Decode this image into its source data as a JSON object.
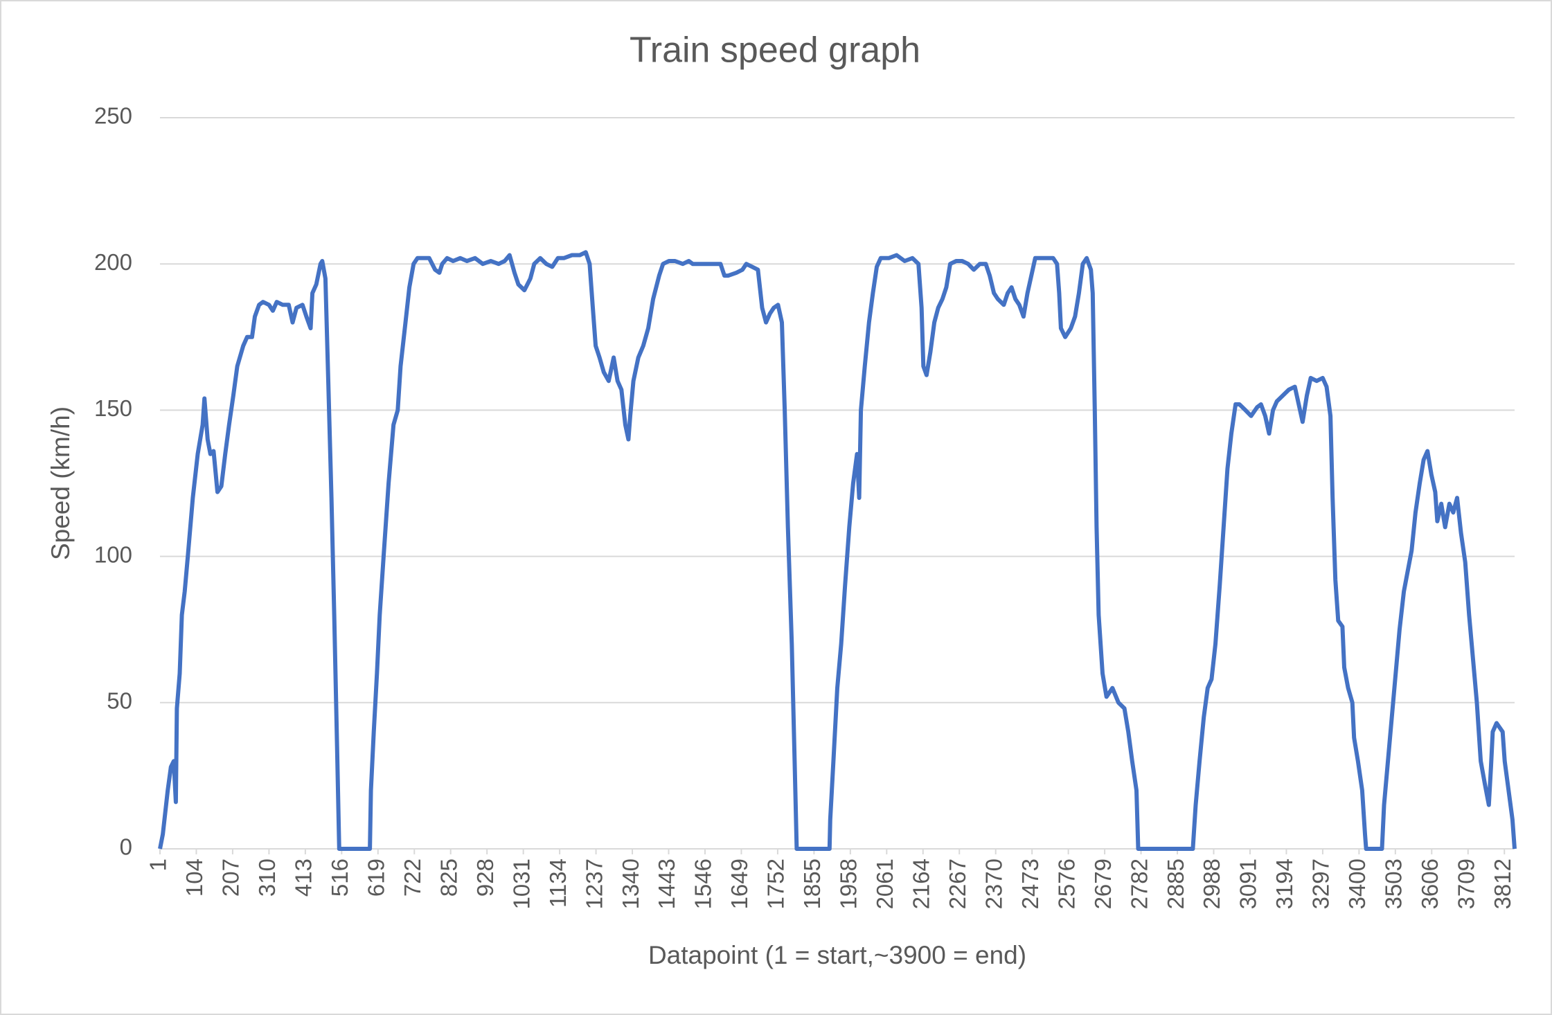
{
  "chart_data": {
    "type": "line",
    "title": "Train speed graph",
    "x_label": "Datapoint (1 = start,~3900 = end)",
    "y_label": "Speed (km/h)",
    "xlim": [
      1,
      3841
    ],
    "xticks": [
      1,
      104,
      207,
      310,
      413,
      516,
      619,
      722,
      825,
      928,
      1031,
      1134,
      1237,
      1340,
      1443,
      1546,
      1649,
      1752,
      1855,
      1958,
      2061,
      2164,
      2267,
      2370,
      2473,
      2576,
      2679,
      2782,
      2885,
      2988,
      3091,
      3194,
      3297,
      3400,
      3503,
      3606,
      3709,
      3812
    ],
    "ylim": [
      0,
      250
    ],
    "yticks": [
      0,
      50,
      100,
      150,
      200,
      250
    ],
    "grid": true,
    "x": [
      1,
      9,
      23,
      32,
      40,
      46,
      49,
      57,
      63,
      71,
      80,
      94,
      108,
      122,
      127,
      136,
      144,
      153,
      164,
      175,
      186,
      197,
      209,
      220,
      237,
      248,
      262,
      270,
      282,
      293,
      310,
      321,
      332,
      349,
      366,
      377,
      388,
      405,
      416,
      428,
      433,
      444,
      456,
      461,
      470,
      478,
      487,
      495,
      503,
      509,
      596,
      599,
      607,
      616,
      624,
      635,
      649,
      663,
      675,
      683,
      697,
      708,
      720,
      731,
      748,
      764,
      781,
      793,
      801,
      815,
      832,
      852,
      871,
      894,
      916,
      939,
      961,
      978,
      992,
      1006,
      1017,
      1034,
      1051,
      1062,
      1079,
      1096,
      1113,
      1129,
      1146,
      1169,
      1191,
      1208,
      1219,
      1228,
      1236,
      1247,
      1259,
      1273,
      1287,
      1298,
      1309,
      1320,
      1329,
      1334,
      1343,
      1357,
      1371,
      1385,
      1399,
      1416,
      1427,
      1444,
      1461,
      1483,
      1500,
      1511,
      1528,
      1550,
      1573,
      1590,
      1601,
      1612,
      1635,
      1652,
      1663,
      1680,
      1696,
      1708,
      1719,
      1730,
      1741,
      1753,
      1764,
      1772,
      1781,
      1792,
      1800,
      1806,
      1899,
      1901,
      1910,
      1921,
      1932,
      1943,
      1955,
      1966,
      1977,
      1983,
      1988,
      1999,
      2011,
      2022,
      2033,
      2044,
      2067,
      2089,
      2112,
      2134,
      2151,
      2160,
      2165,
      2174,
      2185,
      2196,
      2207,
      2219,
      2230,
      2241,
      2258,
      2275,
      2292,
      2308,
      2325,
      2342,
      2353,
      2365,
      2376,
      2393,
      2404,
      2415,
      2426,
      2437,
      2449,
      2460,
      2471,
      2482,
      2499,
      2516,
      2533,
      2544,
      2550,
      2555,
      2567,
      2583,
      2595,
      2606,
      2617,
      2628,
      2640,
      2645,
      2651,
      2656,
      2662,
      2673,
      2684,
      2701,
      2718,
      2735,
      2746,
      2757,
      2769,
      2774,
      2929,
      2937,
      2948,
      2960,
      2971,
      2982,
      2993,
      3005,
      3016,
      3027,
      3038,
      3050,
      3061,
      3078,
      3094,
      3111,
      3122,
      3134,
      3145,
      3156,
      3167,
      3184,
      3201,
      3218,
      3229,
      3240,
      3252,
      3263,
      3280,
      3297,
      3308,
      3319,
      3325,
      3333,
      3341,
      3353,
      3358,
      3369,
      3381,
      3386,
      3397,
      3409,
      3417,
      3420,
      3465,
      3471,
      3482,
      3493,
      3504,
      3515,
      3527,
      3538,
      3549,
      3560,
      3572,
      3583,
      3594,
      3605,
      3616,
      3622,
      3633,
      3644,
      3656,
      3667,
      3678,
      3689,
      3701,
      3712,
      3723,
      3734,
      3745,
      3757,
      3768,
      3774,
      3779,
      3790,
      3807,
      3813,
      3824,
      3835,
      3841
    ],
    "series": [
      {
        "name": "Speed (km/h)",
        "color": "#4472c4",
        "values": [
          0,
          5,
          20,
          28,
          30,
          16,
          48,
          60,
          80,
          88,
          100,
          120,
          135,
          145,
          154,
          140,
          135,
          136,
          122,
          124,
          135,
          145,
          155,
          165,
          172,
          175,
          175,
          182,
          186,
          187,
          186,
          184,
          187,
          186,
          186,
          180,
          185,
          186,
          182,
          178,
          190,
          193,
          200,
          201,
          195,
          160,
          120,
          80,
          35,
          0,
          0,
          20,
          40,
          60,
          80,
          100,
          125,
          145,
          150,
          165,
          180,
          192,
          200,
          202,
          202,
          202,
          198,
          197,
          200,
          202,
          201,
          202,
          201,
          202,
          200,
          201,
          200,
          201,
          203,
          197,
          193,
          191,
          195,
          200,
          202,
          200,
          199,
          202,
          202,
          203,
          203,
          204,
          200,
          185,
          172,
          168,
          163,
          160,
          168,
          160,
          157,
          145,
          140,
          148,
          160,
          168,
          172,
          178,
          188,
          196,
          200,
          201,
          201,
          200,
          201,
          200,
          200,
          200,
          200,
          200,
          196,
          196,
          197,
          198,
          200,
          199,
          198,
          185,
          180,
          183,
          185,
          186,
          180,
          150,
          110,
          70,
          30,
          0,
          0,
          10,
          30,
          55,
          70,
          90,
          110,
          125,
          135,
          120,
          150,
          165,
          180,
          190,
          199,
          202,
          202,
          203,
          201,
          202,
          200,
          185,
          165,
          162,
          170,
          180,
          185,
          188,
          192,
          200,
          201,
          201,
          200,
          198,
          200,
          200,
          196,
          190,
          188,
          186,
          190,
          192,
          188,
          186,
          182,
          190,
          196,
          202,
          202,
          202,
          202,
          200,
          190,
          178,
          175,
          178,
          182,
          190,
          200,
          202,
          198,
          190,
          150,
          110,
          80,
          60,
          52,
          55,
          50,
          48,
          40,
          30,
          20,
          0,
          0,
          15,
          30,
          45,
          55,
          58,
          70,
          90,
          110,
          130,
          142,
          152,
          152,
          150,
          148,
          151,
          152,
          148,
          142,
          150,
          153,
          155,
          157,
          158,
          152,
          146,
          155,
          161,
          160,
          161,
          158,
          148,
          120,
          92,
          78,
          76,
          62,
          55,
          50,
          38,
          30,
          20,
          5,
          0,
          0,
          15,
          30,
          45,
          60,
          75,
          88,
          95,
          102,
          115,
          125,
          133,
          136,
          128,
          122,
          112,
          118,
          110,
          118,
          115,
          120,
          108,
          98,
          80,
          65,
          50,
          30,
          22,
          15,
          28,
          40,
          43,
          40,
          30,
          20,
          10,
          0
        ]
      }
    ]
  }
}
